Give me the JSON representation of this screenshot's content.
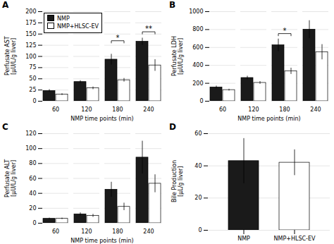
{
  "chart_data": [
    {
      "type": "bar",
      "title": "A",
      "xlabel": "NMP time points (min)",
      "ylabel": "Perfusate AST\n[µU/L/g liver]",
      "categories": [
        "60",
        "120",
        "180",
        "240"
      ],
      "series": [
        {
          "name": "NMP",
          "color": "#1a1a1a",
          "values": [
            23,
            43,
            93,
            133
          ],
          "errors": [
            3,
            3,
            12,
            8
          ]
        },
        {
          "name": "NMP+HLSC-EV",
          "color": "#ffffff",
          "values": [
            15,
            29,
            47,
            80
          ],
          "errors": [
            2,
            3,
            4,
            13
          ]
        }
      ],
      "ylim": [
        0,
        200
      ],
      "yticks": [
        0,
        25,
        50,
        75,
        100,
        125,
        150,
        175,
        200
      ],
      "grid": true,
      "legend": "upper left",
      "annotations": [
        {
          "text": "*",
          "category": "180",
          "y": 130
        },
        {
          "text": "**",
          "category": "240",
          "y": 150
        }
      ]
    },
    {
      "type": "bar",
      "title": "B",
      "xlabel": "NMP time points (min)",
      "ylabel": "Perfusate LDH\n[µU/L/g liver]",
      "categories": [
        "60",
        "120",
        "180",
        "240"
      ],
      "series": [
        {
          "name": "NMP",
          "color": "#1a1a1a",
          "values": [
            155,
            260,
            625,
            800
          ],
          "errors": [
            15,
            20,
            70,
            100
          ]
        },
        {
          "name": "NMP+HLSC-EV",
          "color": "#ffffff",
          "values": [
            125,
            205,
            335,
            548
          ],
          "errors": [
            10,
            15,
            35,
            85
          ]
        }
      ],
      "ylim": [
        0,
        1000
      ],
      "yticks": [
        0,
        200,
        400,
        600,
        800,
        1000
      ],
      "grid": true,
      "annotations": [
        {
          "text": "*",
          "category": "180",
          "y": 730
        }
      ]
    },
    {
      "type": "bar",
      "title": "C",
      "xlabel": "NMP time points (min)",
      "ylabel": "Perfusate ALT\n[µU/L/g liver]",
      "categories": [
        "60",
        "120",
        "180",
        "240"
      ],
      "series": [
        {
          "name": "NMP",
          "color": "#1a1a1a",
          "values": [
            6,
            12,
            45,
            88
          ],
          "errors": [
            1,
            2,
            10,
            22
          ]
        },
        {
          "name": "NMP+HLSC-EV",
          "color": "#ffffff",
          "values": [
            6,
            10,
            22,
            53
          ],
          "errors": [
            1,
            2,
            5,
            12
          ]
        }
      ],
      "ylim": [
        0,
        120
      ],
      "yticks": [
        0,
        20,
        40,
        60,
        80,
        100,
        120
      ],
      "grid": true
    },
    {
      "type": "bar",
      "title": "D",
      "ylabel": "Bile Production\n[µL/g liver]",
      "categories": [
        "NMP",
        "NMP+HLSC-EV"
      ],
      "values": [
        43,
        42
      ],
      "errors": [
        14,
        8
      ],
      "colors": [
        "#1a1a1a",
        "#ffffff"
      ],
      "ylim": [
        0,
        60
      ],
      "yticks": [
        0,
        20,
        40,
        60
      ],
      "grid": true
    }
  ]
}
